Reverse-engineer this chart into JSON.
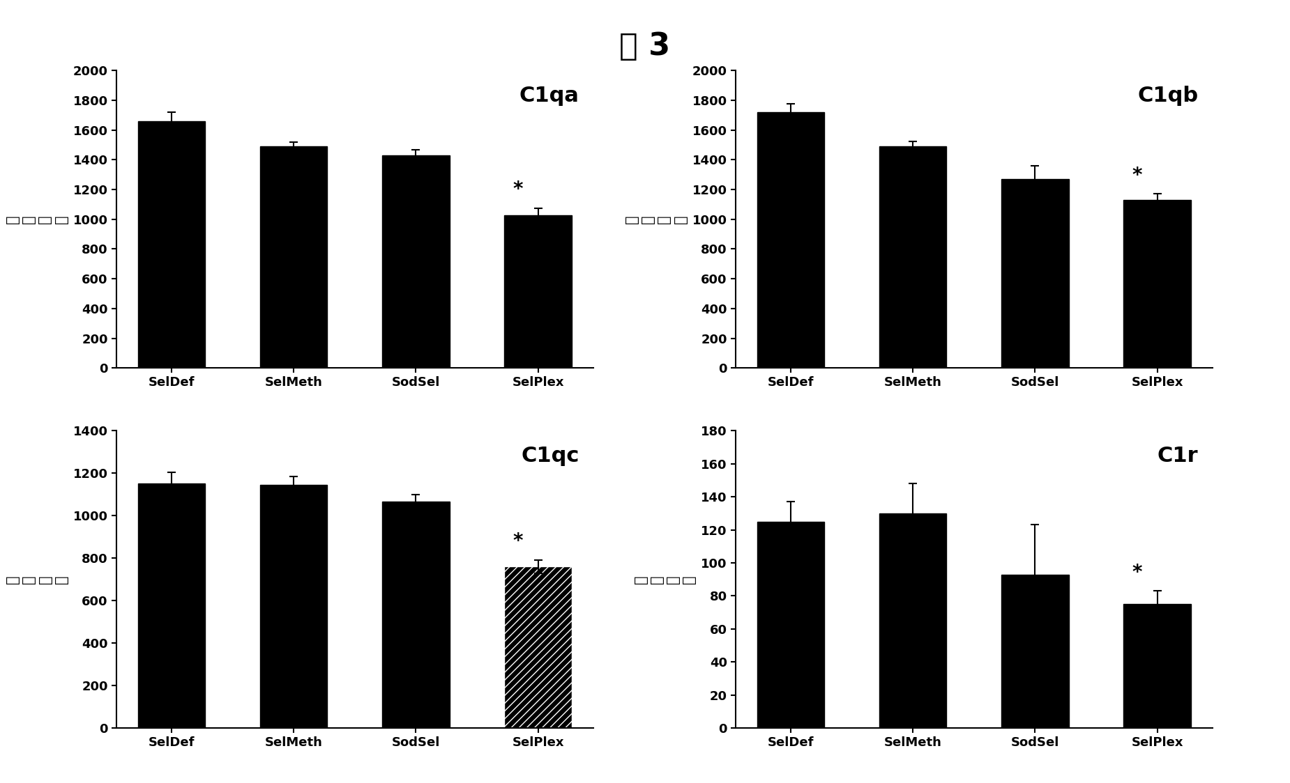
{
  "title": "图 3",
  "title_fontsize": 32,
  "subplot_label_fontsize": 22,
  "ylabel_chars": [
    "荧",
    "光",
    "强",
    "度"
  ],
  "ylabel_fontsize": 15,
  "xlabel_fontsize": 13,
  "tick_fontsize": 13,
  "categories": [
    "SelDef",
    "SelMeth",
    "SodSel",
    "SelPlex"
  ],
  "subplots": [
    {
      "label": "C1qa",
      "values": [
        1660,
        1490,
        1430,
        1025
      ],
      "errors": [
        60,
        30,
        35,
        50
      ],
      "ylim": [
        0,
        2000
      ],
      "yticks": [
        0,
        200,
        400,
        600,
        800,
        1000,
        1200,
        1400,
        1600,
        1800,
        2000
      ],
      "star_idx": 3,
      "hatch_last": false
    },
    {
      "label": "C1qb",
      "values": [
        1720,
        1490,
        1270,
        1130
      ],
      "errors": [
        55,
        35,
        90,
        40
      ],
      "ylim": [
        0,
        2000
      ],
      "yticks": [
        0,
        200,
        400,
        600,
        800,
        1000,
        1200,
        1400,
        1600,
        1800,
        2000
      ],
      "star_idx": 3,
      "hatch_last": false
    },
    {
      "label": "C1qc",
      "values": [
        1150,
        1145,
        1065,
        760
      ],
      "errors": [
        55,
        40,
        35,
        30
      ],
      "ylim": [
        0,
        1400
      ],
      "yticks": [
        0,
        200,
        400,
        600,
        800,
        1000,
        1200,
        1400
      ],
      "star_idx": 3,
      "hatch_last": true
    },
    {
      "label": "C1r",
      "values": [
        125,
        130,
        93,
        75
      ],
      "errors": [
        12,
        18,
        30,
        8
      ],
      "ylim": [
        0,
        180
      ],
      "yticks": [
        0,
        20,
        40,
        60,
        80,
        100,
        120,
        140,
        160,
        180
      ],
      "star_idx": 3,
      "hatch_last": false
    }
  ],
  "bar_color": "#000000",
  "background_color": "#ffffff",
  "bar_width": 0.55
}
